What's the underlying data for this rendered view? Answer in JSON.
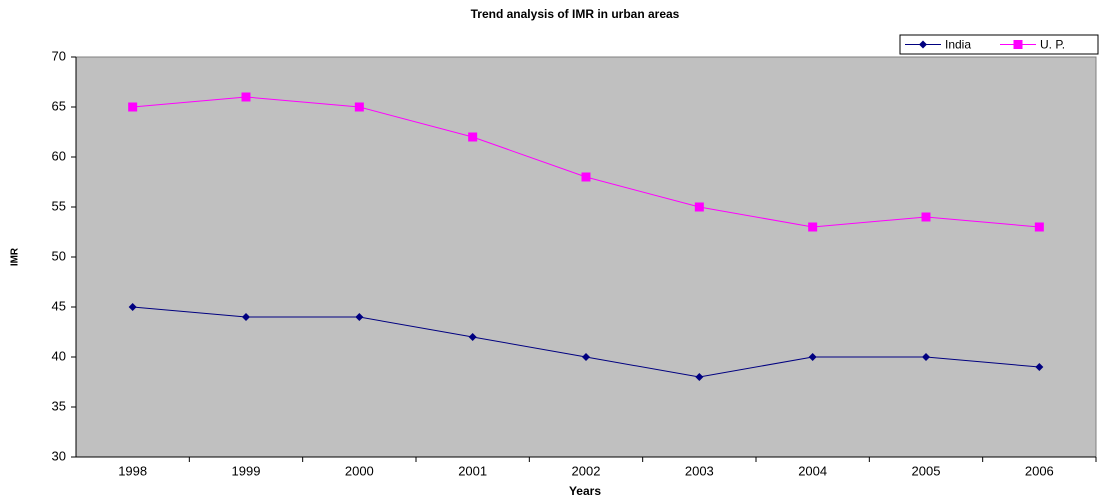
{
  "chart_data": {
    "type": "line",
    "title": "Trend analysis of IMR in urban areas",
    "x_label": "Years",
    "y_label": "IMR",
    "categories": [
      "1998",
      "1999",
      "2000",
      "2001",
      "2002",
      "2003",
      "2004",
      "2005",
      "2006"
    ],
    "series": [
      {
        "name": "India",
        "color": "#000080",
        "marker": "diamond",
        "values": [
          45,
          44,
          44,
          42,
          40,
          38,
          40,
          40,
          39
        ]
      },
      {
        "name": "U. P.",
        "color": "#ff00ff",
        "marker": "square",
        "values": [
          65,
          66,
          65,
          62,
          58,
          55,
          53,
          54,
          53
        ]
      }
    ],
    "ylim": [
      30,
      70
    ],
    "yticks": [
      30,
      35,
      40,
      45,
      50,
      55,
      60,
      65,
      70
    ],
    "legend": "top-right",
    "plot_background": "#c0c0c0"
  }
}
